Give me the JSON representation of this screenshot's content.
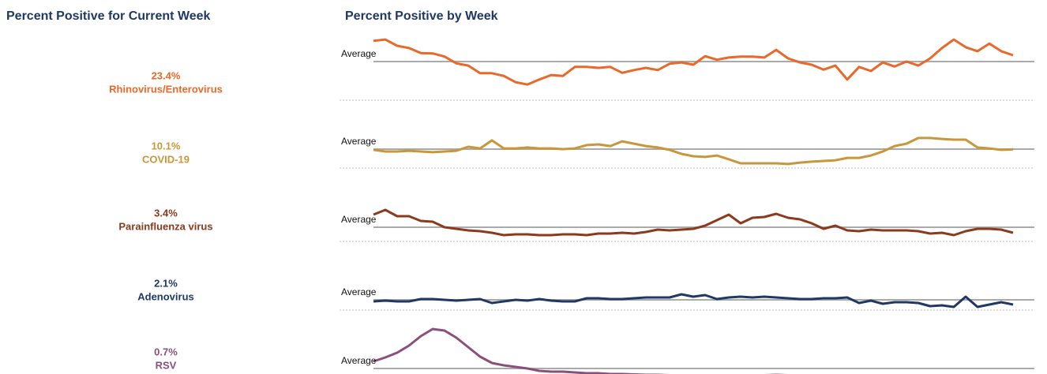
{
  "left_title": "Percent Positive for Current Week",
  "right_title": "Percent Positive by Week",
  "panels": [
    {
      "name": "Rhinovirus/Enterovirus",
      "current": "23.4%",
      "color": "#e8692a",
      "average_label": "Average",
      "average": 22,
      "ylim": [
        13,
        29
      ],
      "values": [
        26.6,
        26.9,
        25.5,
        25.0,
        23.9,
        23.8,
        23.1,
        21.6,
        21.1,
        19.4,
        19.4,
        18.8,
        17.4,
        16.9,
        18.0,
        19.0,
        18.8,
        20.8,
        20.8,
        20.6,
        20.8,
        19.5,
        20.1,
        20.6,
        20.1,
        21.5,
        21.8,
        21.3,
        23.2,
        22.4,
        22.9,
        23.1,
        23.1,
        22.9,
        24.6,
        22.7,
        21.8,
        21.3,
        20.2,
        21.1,
        18.0,
        20.8,
        19.9,
        21.8,
        20.9,
        22.0,
        21.1,
        22.7,
        25.0,
        26.9,
        25.2,
        24.3,
        26.0,
        24.3,
        23.4
      ]
    },
    {
      "name": "COVID-19",
      "current": "10.1%",
      "color": "#c9963a",
      "average_label": "Average",
      "average": 10.2,
      "ylim": [
        3,
        18
      ],
      "values": [
        9.9,
        9.2,
        9.2,
        9.5,
        9.2,
        8.9,
        9.2,
        9.5,
        11.2,
        10.5,
        13.9,
        10.5,
        10.5,
        10.9,
        10.5,
        10.5,
        10.2,
        10.5,
        11.9,
        12.2,
        11.5,
        13.5,
        12.5,
        11.5,
        10.9,
        9.9,
        8.2,
        7.2,
        6.9,
        7.5,
        5.9,
        4.2,
        4.2,
        4.2,
        4.2,
        3.9,
        4.5,
        4.9,
        5.2,
        5.5,
        6.5,
        6.5,
        7.5,
        9.2,
        11.5,
        12.5,
        14.9,
        14.9,
        14.5,
        14.2,
        14.2,
        10.9,
        10.5,
        9.9,
        10.1
      ]
    },
    {
      "name": "Parainfluenza virus",
      "current": "3.4%",
      "color": "#8b3a1e",
      "average_label": "Average",
      "average": 4.1,
      "ylim": [
        2,
        7
      ],
      "values": [
        5.7,
        6.3,
        5.5,
        5.5,
        4.9,
        4.8,
        4.1,
        3.9,
        3.7,
        3.6,
        3.4,
        3.1,
        3.2,
        3.2,
        3.1,
        3.1,
        3.2,
        3.2,
        3.1,
        3.3,
        3.3,
        3.4,
        3.3,
        3.5,
        3.8,
        3.7,
        3.8,
        3.9,
        4.3,
        5.0,
        5.7,
        4.6,
        5.3,
        5.4,
        5.8,
        5.3,
        5.1,
        4.6,
        3.9,
        4.3,
        3.7,
        3.6,
        3.8,
        3.7,
        3.7,
        3.7,
        3.6,
        3.3,
        3.4,
        3.1,
        3.6,
        3.9,
        3.9,
        3.8,
        3.4
      ]
    },
    {
      "name": "Adenovirus",
      "current": "2.1%",
      "color": "#1f3864",
      "average_label": "Average",
      "average": 2.4,
      "ylim": [
        1.8,
        3.0
      ],
      "values": [
        2.3,
        2.35,
        2.3,
        2.3,
        2.45,
        2.45,
        2.4,
        2.35,
        2.4,
        2.45,
        2.2,
        2.3,
        2.4,
        2.35,
        2.45,
        2.35,
        2.3,
        2.3,
        2.5,
        2.5,
        2.45,
        2.45,
        2.5,
        2.55,
        2.55,
        2.55,
        2.75,
        2.6,
        2.7,
        2.45,
        2.55,
        2.6,
        2.55,
        2.6,
        2.55,
        2.5,
        2.45,
        2.45,
        2.5,
        2.5,
        2.55,
        2.2,
        2.35,
        2.15,
        2.25,
        2.25,
        2.2,
        2.0,
        2.05,
        1.95,
        2.6,
        1.95,
        2.1,
        2.25,
        2.1
      ]
    },
    {
      "name": "RSV",
      "current": "0.7%",
      "color": "#8a4f7d",
      "average_label": "Average",
      "average": 2.5,
      "ylim": [
        0,
        14
      ],
      "values": [
        4.3,
        5.3,
        6.5,
        8.3,
        10.7,
        12.5,
        12.1,
        10.3,
        7.9,
        5.5,
        3.9,
        3.3,
        2.9,
        2.5,
        1.9,
        1.7,
        1.7,
        1.5,
        1.3,
        1.3,
        1.1,
        1.1,
        1.0,
        0.9,
        0.9,
        0.8,
        0.8,
        0.8,
        0.7,
        0.8,
        0.8,
        0.7,
        0.7,
        0.8,
        0.9,
        0.8,
        0.8,
        0.7,
        0.7,
        0.6,
        0.6,
        0.7,
        0.7,
        0.6,
        0.6,
        0.7,
        0.8,
        0.7,
        0.7,
        0.6,
        0.6,
        0.7,
        0.7,
        0.7,
        0.7
      ]
    }
  ]
}
